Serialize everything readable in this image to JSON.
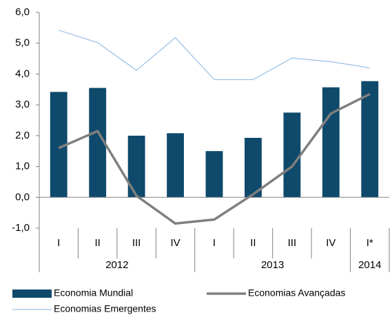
{
  "chart_data": {
    "type": "bar",
    "groups": [
      {
        "label": "2012",
        "categories": [
          "I",
          "II",
          "III",
          "IV"
        ]
      },
      {
        "label": "2013",
        "categories": [
          "I",
          "II",
          "III",
          "IV"
        ]
      },
      {
        "label": "2014",
        "categories": [
          "I*"
        ]
      }
    ],
    "series": [
      {
        "name": "Economia Mundial",
        "type": "bar",
        "color": "#0f4a6c",
        "values": [
          3.42,
          3.55,
          2.0,
          2.08,
          1.5,
          1.93,
          2.75,
          3.57,
          3.77
        ]
      },
      {
        "name": "Economias Avançadas",
        "type": "line",
        "color": "#7f7f7f",
        "values": [
          1.6,
          2.15,
          0.05,
          -0.85,
          -0.72,
          0.1,
          1.0,
          2.72,
          3.35
        ]
      },
      {
        "name": "Economias Emergentes",
        "type": "line",
        "color": "#9dc3e6",
        "values": [
          5.42,
          5.02,
          4.12,
          5.18,
          3.82,
          3.82,
          4.52,
          4.4,
          4.2
        ]
      }
    ],
    "ylim": [
      -1,
      6
    ],
    "yticks": [
      {
        "value": -1,
        "label": "-1,0"
      },
      {
        "value": 0,
        "label": "0,0"
      },
      {
        "value": 1,
        "label": "1,0"
      },
      {
        "value": 2,
        "label": "2,0"
      },
      {
        "value": 3,
        "label": "3,0"
      },
      {
        "value": 4,
        "label": "4,0"
      },
      {
        "value": 5,
        "label": "5,0"
      },
      {
        "value": 6,
        "label": "6,0"
      }
    ],
    "grid": false
  }
}
